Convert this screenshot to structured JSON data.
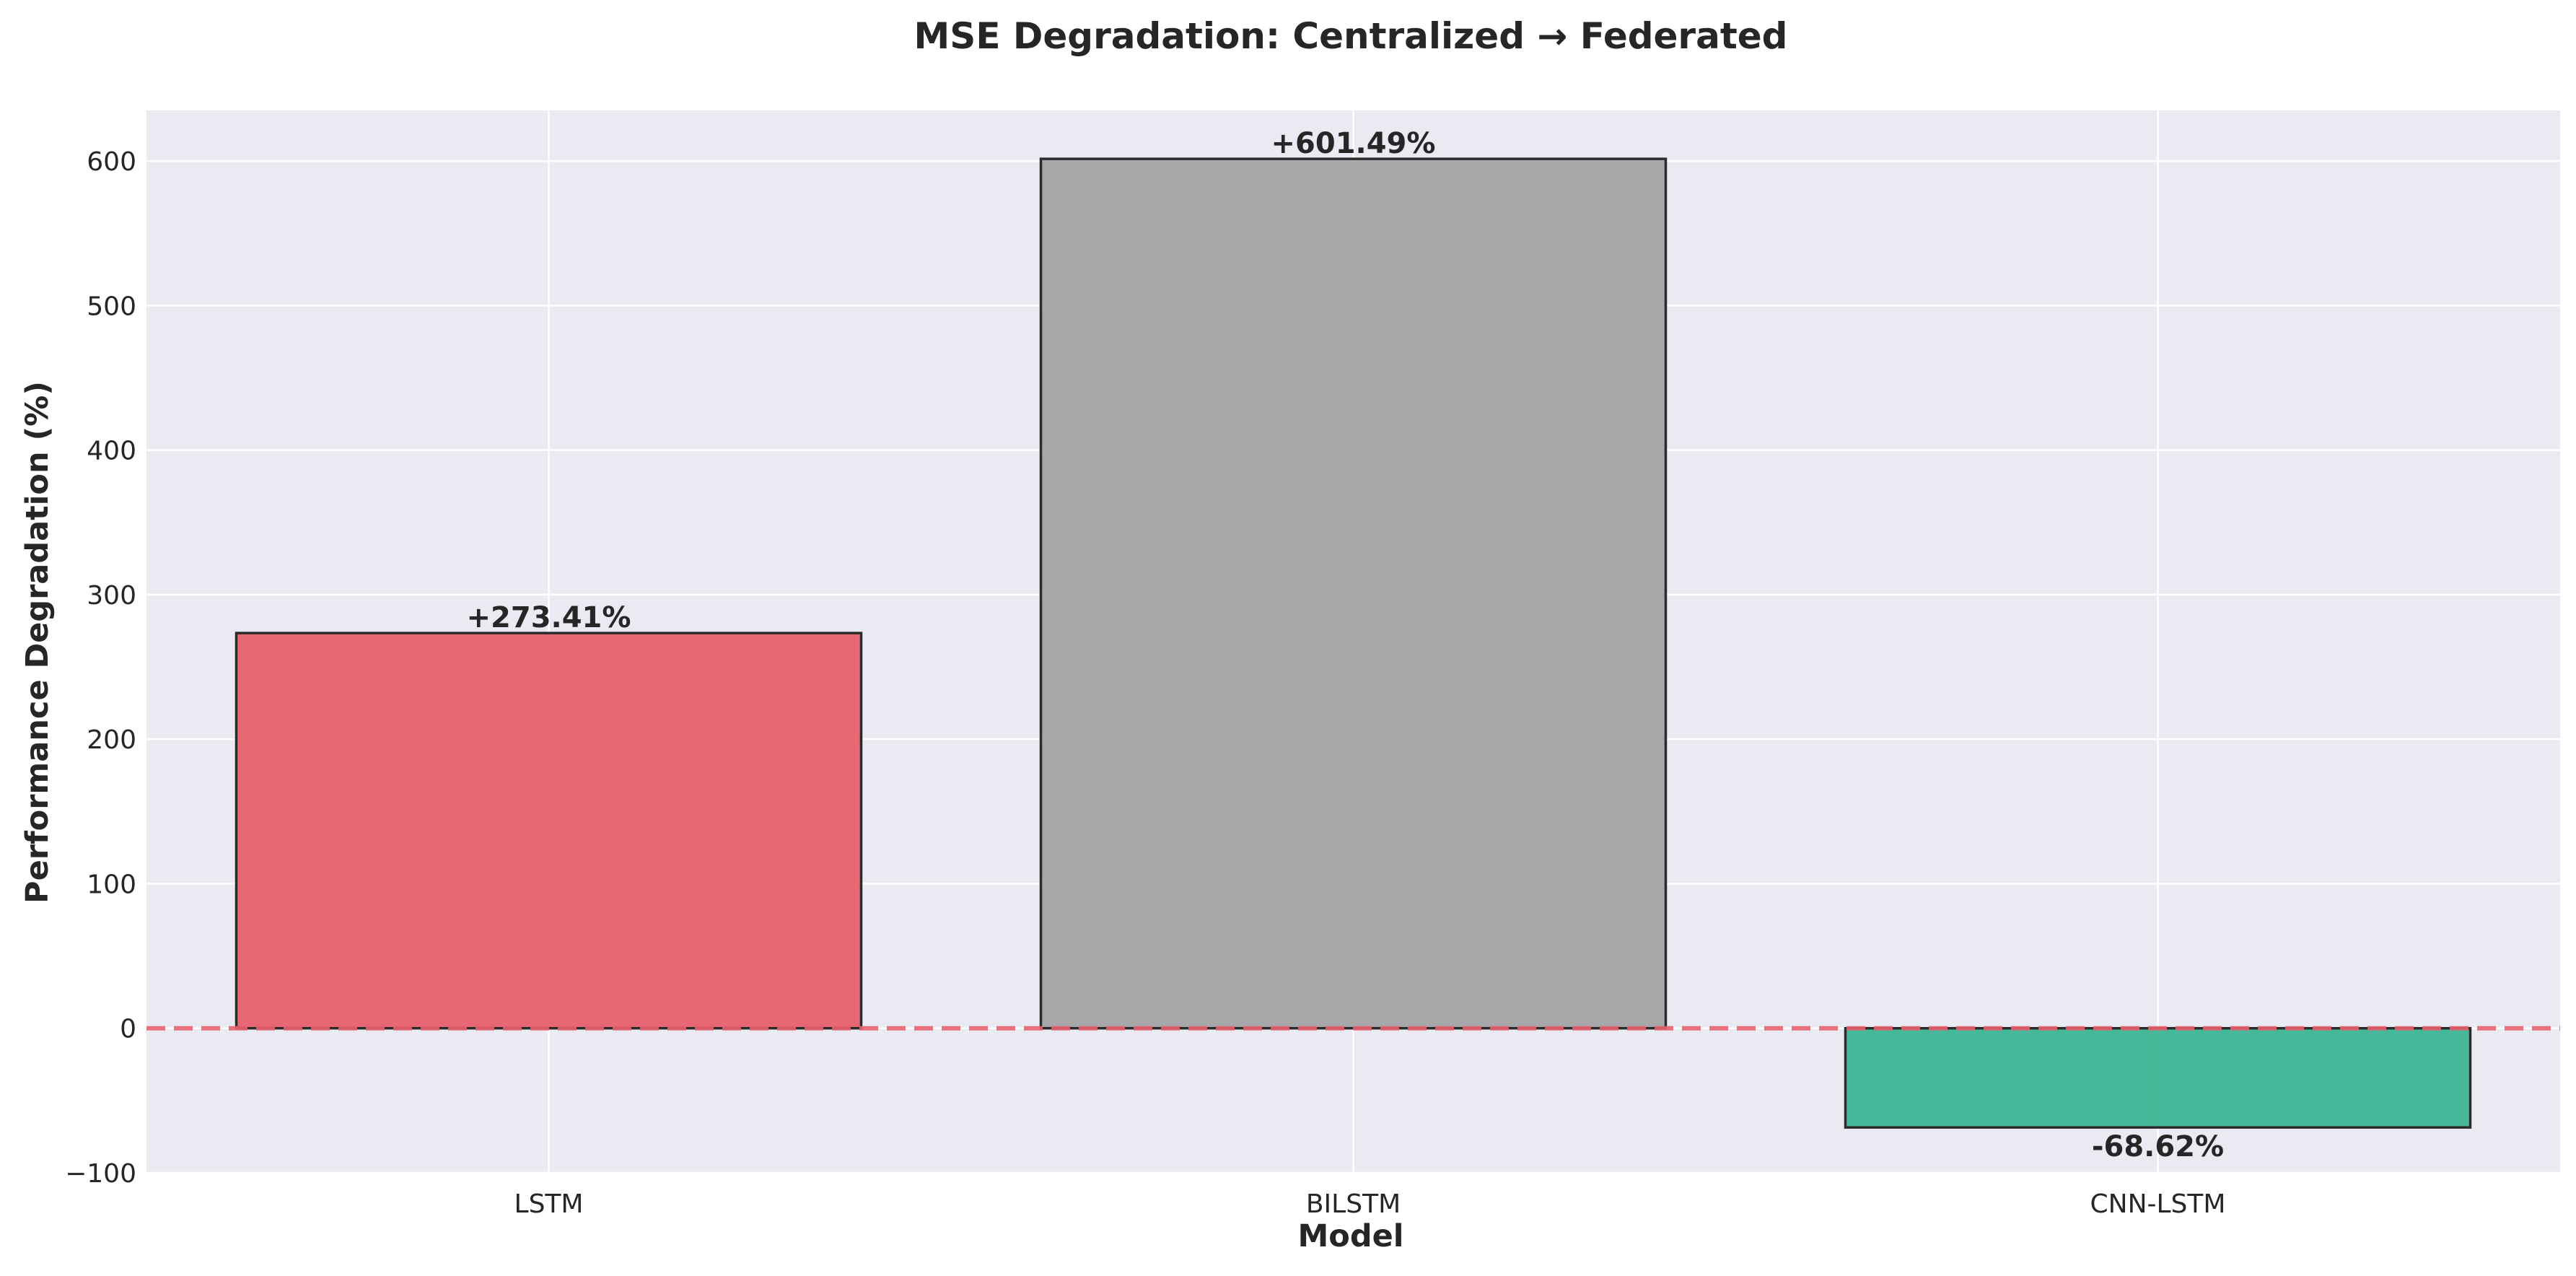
{
  "chart_data": {
    "type": "bar",
    "title": "MSE Degradation: Centralized → Federated",
    "xlabel": "Model",
    "ylabel": "Performance Degradation (%)",
    "categories": [
      "LSTM",
      "BILSTM",
      "CNN-LSTM"
    ],
    "values": [
      273.41,
      601.49,
      -68.62
    ],
    "data_labels": [
      "+273.41%",
      "+601.49%",
      "-68.62%"
    ],
    "bar_colors": [
      "#e8606d",
      "#a3a3a5",
      "#3cb594"
    ],
    "ylim": [
      -100,
      635
    ],
    "yticks": [
      -100,
      0,
      100,
      200,
      300,
      400,
      500,
      600
    ],
    "ytick_labels": [
      "−100",
      "0",
      "100",
      "200",
      "300",
      "400",
      "500",
      "600"
    ],
    "reference_line": {
      "y": 0,
      "style": "dashed",
      "color": "#e8606d"
    },
    "grid": true,
    "background_color": "#eaeaf2"
  }
}
